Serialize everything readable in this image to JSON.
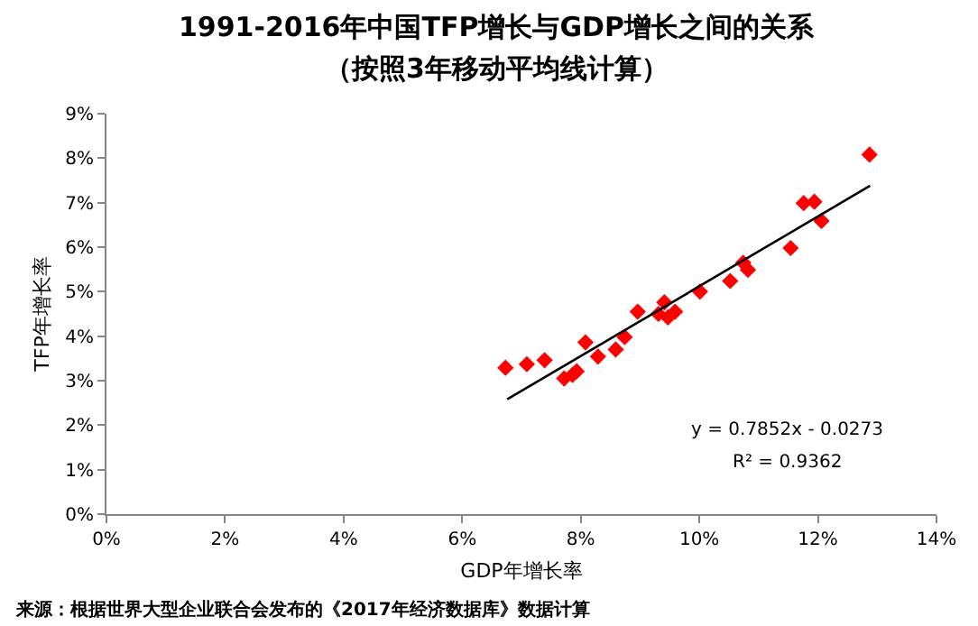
{
  "chart_data": {
    "type": "scatter",
    "title": "1991-2016年中国TFP增长与GDP增长之间的关系",
    "subtitle": "（按照3年移动平均线计算）",
    "xlabel": "GDP年增长率",
    "ylabel": "TFP年增长率",
    "annotations": [
      "y = 0.7852x - 0.0273",
      "R² = 0.9362",
      "来源：根据世界大型企业联合会发布的《2017年经济数据库》数据计算"
    ],
    "marker": "diamond",
    "xlim": [
      0,
      14
    ],
    "xticks": [
      {
        "value": 0,
        "label": "0%"
      },
      {
        "value": 2,
        "label": "2%"
      },
      {
        "value": 4,
        "label": "4%"
      },
      {
        "value": 6,
        "label": "6%"
      },
      {
        "value": 8,
        "label": "8%"
      },
      {
        "value": 10,
        "label": "10%"
      },
      {
        "value": 12,
        "label": "12%"
      },
      {
        "value": 14,
        "label": "14%"
      }
    ],
    "ylim": [
      0,
      9
    ],
    "yticks": [
      {
        "value": 0,
        "label": "0%"
      },
      {
        "value": 1,
        "label": "1%"
      },
      {
        "value": 2,
        "label": "2%"
      },
      {
        "value": 3,
        "label": "3%"
      },
      {
        "value": 4,
        "label": "4%"
      },
      {
        "value": 5,
        "label": "5%"
      },
      {
        "value": 6,
        "label": "6%"
      },
      {
        "value": 7,
        "label": "7%"
      },
      {
        "value": 8,
        "label": "8%"
      },
      {
        "value": 9,
        "label": "9%"
      }
    ],
    "series": [
      {
        "color": "#ff0000",
        "x": [
          6.73,
          7.09,
          7.39,
          7.72,
          7.86,
          7.93,
          8.08,
          8.29,
          8.59,
          8.74,
          8.96,
          9.31,
          9.41,
          9.47,
          9.59,
          10.01,
          10.52,
          10.74,
          10.82,
          11.54,
          11.76,
          11.94,
          12.06,
          12.87
        ],
        "values": [
          3.29,
          3.37,
          3.46,
          3.05,
          3.13,
          3.21,
          3.86,
          3.54,
          3.7,
          3.98,
          4.55,
          4.5,
          4.76,
          4.42,
          4.55,
          5.0,
          5.24,
          5.65,
          5.49,
          5.98,
          6.99,
          7.02,
          6.59,
          8.08
        ]
      },
      {
        "type": "line",
        "color": "#000000",
        "line_style": "solid",
        "marker": "none",
        "x": [
          6.76,
          12.88
        ],
        "values": [
          2.58,
          7.38
        ]
      }
    ]
  }
}
